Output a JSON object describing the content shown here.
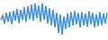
{
  "chart_data": {
    "type": "line",
    "categories": [
      null,
      null,
      null,
      null,
      null,
      null,
      null,
      null,
      null,
      null,
      null,
      null,
      null,
      null,
      null,
      null,
      null,
      null,
      null,
      null,
      null,
      null,
      null,
      null,
      null,
      null,
      null,
      null,
      null,
      null,
      null,
      null,
      null,
      null,
      null,
      null,
      null,
      null,
      null,
      null,
      null,
      null,
      null,
      null,
      null,
      null,
      null,
      null,
      null,
      null,
      null,
      null,
      null,
      null,
      null,
      null,
      null,
      null,
      null,
      null
    ],
    "values": [
      50,
      62,
      40,
      70,
      45,
      72,
      38,
      75,
      48,
      80,
      42,
      78,
      50,
      85,
      45,
      88,
      52,
      92,
      48,
      95,
      55,
      90,
      45,
      96,
      50,
      88,
      40,
      82,
      35,
      78,
      30,
      70,
      15,
      65,
      10,
      60,
      25,
      68,
      30,
      72,
      35,
      75,
      38,
      70,
      30,
      72,
      35,
      68,
      32,
      74,
      38,
      70,
      30,
      66,
      34,
      72,
      36,
      68,
      40,
      70
    ],
    "color": "#3a8fd8",
    "ylim": [
      0,
      100
    ],
    "tick_labels": false,
    "grid": false
  }
}
